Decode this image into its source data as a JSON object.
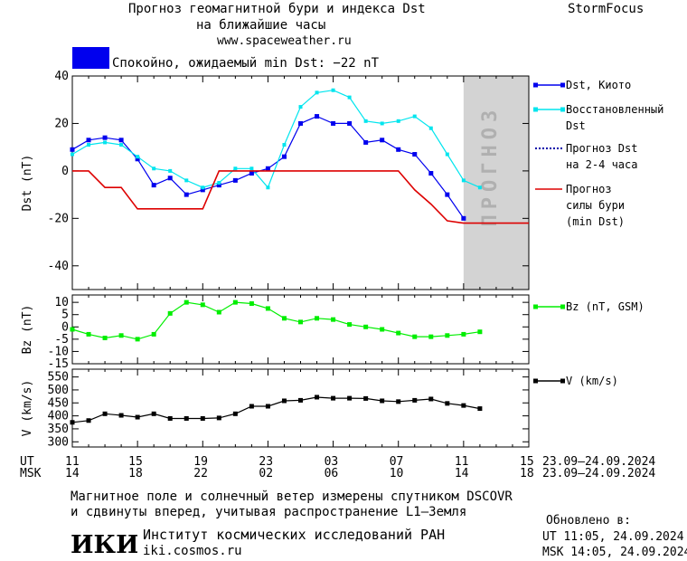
{
  "header": {
    "title_line1": "Прогноз геомагнитной бури и индекса Dst",
    "title_line2": "на ближайшие часы",
    "url": "www.spaceweather.ru",
    "brand": "StormFocus",
    "status_color": "#0000ee",
    "status_text": "Спокойно, ожидаемый min Dst: −22 nT"
  },
  "chart_data": [
    {
      "type": "line",
      "ylabel": "Dst (nT)",
      "ylim": [
        -50,
        40
      ],
      "yticks": [
        40,
        20,
        0,
        -20,
        -40
      ],
      "xlim": [
        0,
        28
      ],
      "forecast_region": {
        "from": 24,
        "to": 28,
        "label": "ПРОГНОЗ",
        "color": "#d3d3d3"
      },
      "series": [
        {
          "name": "Dst, Киото",
          "color": "#0000ee",
          "marker": "square",
          "x": [
            0,
            1,
            2,
            3,
            4,
            5,
            6,
            7,
            8,
            9,
            10,
            11,
            12,
            13,
            14,
            15,
            16,
            17,
            18,
            19,
            20,
            21,
            22,
            23,
            24
          ],
          "y": [
            9,
            13,
            14,
            13,
            5,
            -6,
            -3,
            -10,
            -8,
            -6,
            -4,
            -1,
            1,
            6,
            20,
            23,
            20,
            20,
            12,
            13,
            9,
            7,
            -1,
            -10,
            -20
          ]
        },
        {
          "name": "Восстановленный Dst",
          "color": "#00e5ee",
          "marker": "square-small",
          "x": [
            0,
            1,
            2,
            3,
            4,
            5,
            6,
            7,
            8,
            9,
            10,
            11,
            12,
            13,
            14,
            15,
            16,
            17,
            18,
            19,
            20,
            21,
            22,
            23,
            24,
            25
          ],
          "y": [
            7,
            11,
            12,
            11,
            6,
            1,
            0,
            -4,
            -7,
            -5,
            1,
            1,
            -7,
            11,
            27,
            33,
            34,
            31,
            21,
            20,
            21,
            23,
            18,
            7,
            -4,
            -7
          ]
        },
        {
          "name": "Прогноз Dst на 2-4 часа",
          "color": "#0000aa",
          "style": "dotted",
          "x": [],
          "y": []
        },
        {
          "name": "Прогноз силы бури (min Dst)",
          "color": "#dd0000",
          "x": [
            0,
            1,
            2,
            3,
            4,
            5,
            6,
            7,
            8,
            9,
            10,
            11,
            12,
            13,
            14,
            15,
            16,
            17,
            18,
            19,
            20,
            21,
            22,
            23,
            24,
            25,
            26,
            27,
            28
          ],
          "y": [
            0,
            0,
            -7,
            -7,
            -16,
            -16,
            -16,
            -16,
            -16,
            0,
            0,
            0,
            0,
            0,
            0,
            0,
            0,
            0,
            0,
            0,
            0,
            -8,
            -14,
            -21,
            -22,
            -22,
            -22,
            -22,
            -22
          ]
        }
      ]
    },
    {
      "type": "line",
      "ylabel": "Bz (nT)",
      "ylim": [
        -15,
        13
      ],
      "yticks": [
        10,
        5,
        0,
        -5,
        -10,
        -15
      ],
      "xlim": [
        0,
        28
      ],
      "series": [
        {
          "name": "Bz (nT, GSM)",
          "color": "#00ee00",
          "marker": "square",
          "x": [
            0,
            1,
            2,
            3,
            4,
            5,
            6,
            7,
            8,
            9,
            10,
            11,
            12,
            13,
            14,
            15,
            16,
            17,
            18,
            19,
            20,
            21,
            22,
            23,
            24,
            25
          ],
          "y": [
            -1,
            -3,
            -4.5,
            -3.5,
            -5,
            -3,
            5.5,
            10,
            9,
            6,
            10,
            9.5,
            7.5,
            3.5,
            2,
            3.5,
            3,
            1,
            0,
            -1,
            -2.5,
            -4,
            -4,
            -3.5,
            -3,
            -2
          ]
        }
      ]
    },
    {
      "type": "line",
      "ylabel": "V (km/s)",
      "ylim": [
        280,
        580
      ],
      "yticks": [
        550,
        500,
        450,
        400,
        350,
        300
      ],
      "xlim": [
        0,
        28
      ],
      "series": [
        {
          "name": "V (km/s)",
          "color": "#000000",
          "marker": "square",
          "x": [
            0,
            1,
            2,
            3,
            4,
            5,
            6,
            7,
            8,
            9,
            10,
            11,
            12,
            13,
            14,
            15,
            16,
            17,
            18,
            19,
            20,
            21,
            22,
            23,
            24,
            25
          ],
          "y": [
            375,
            382,
            408,
            402,
            395,
            408,
            390,
            390,
            390,
            392,
            408,
            437,
            437,
            458,
            460,
            472,
            468,
            468,
            467,
            458,
            455,
            460,
            465,
            448,
            440,
            428
          ]
        }
      ]
    }
  ],
  "time_axis": {
    "ut_label": "UT",
    "msk_label": "MSK",
    "ut_ticks": [
      "11",
      "15",
      "19",
      "23",
      "03",
      "07",
      "11",
      "15"
    ],
    "msk_ticks": [
      "14",
      "18",
      "22",
      "02",
      "06",
      "10",
      "14",
      "18"
    ],
    "ut_range": "23.09—24.09.2024",
    "msk_range": "23.09—24.09.2024"
  },
  "footer": {
    "note_line1": "Магнитное поле и солнечный ветер измерены спутником DSCOVR",
    "note_line2": "и сдвинуты вперед, учитывая распространение L1—Земля",
    "logo_text": "ИКИ",
    "institute": "Институт космических исследований РАН",
    "institute_url": "iki.cosmos.ru",
    "updated_label": "Обновлено в:",
    "updated_ut": "UT   11:05, 24.09.2024",
    "updated_msk": "MSK 14:05, 24.09.2024"
  }
}
